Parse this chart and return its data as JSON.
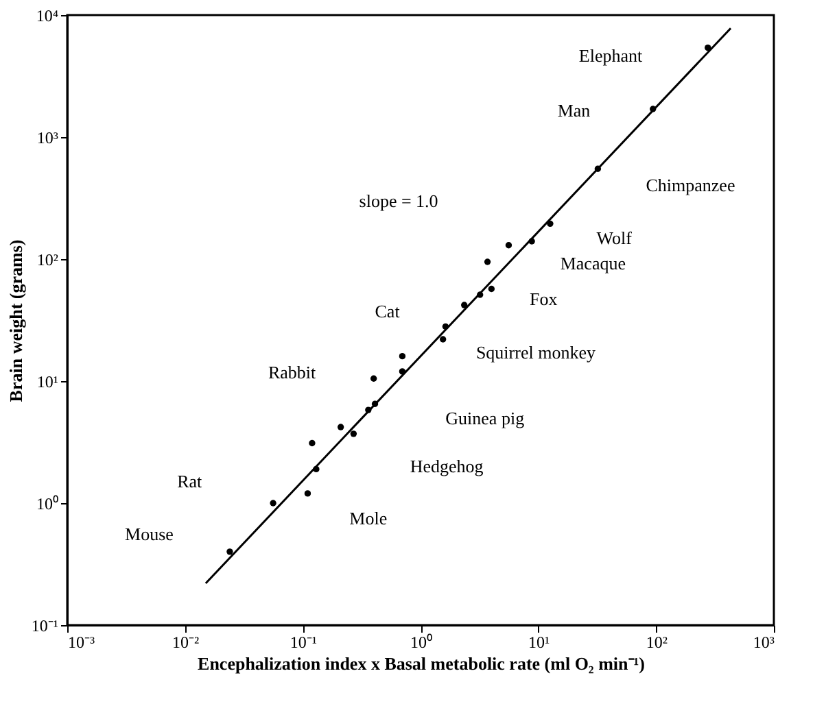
{
  "chart_data": {
    "type": "scatter",
    "xlabel": "Encephalization index x Basal metabolic rate (ml O₂ min⁻¹)",
    "ylabel": "Brain weight (grams)",
    "log": "xy",
    "grid": false,
    "xlim": [
      0.001,
      1000
    ],
    "ylim": [
      0.1,
      10000
    ],
    "xticks": [
      {
        "value": 0.001,
        "label": "10⁻³"
      },
      {
        "value": 0.01,
        "label": "10⁻²"
      },
      {
        "value": 0.1,
        "label": "10⁻¹"
      },
      {
        "value": 1,
        "label": "10⁰"
      },
      {
        "value": 10,
        "label": "10¹"
      },
      {
        "value": 100,
        "label": "10²"
      },
      {
        "value": 1000,
        "label": "10³"
      }
    ],
    "yticks": [
      {
        "value": 0.1,
        "label": "10⁻¹"
      },
      {
        "value": 1,
        "label": "10⁰"
      },
      {
        "value": 10,
        "label": "10¹"
      },
      {
        "value": 100,
        "label": "10²"
      },
      {
        "value": 1000,
        "label": "10³"
      },
      {
        "value": 10000,
        "label": "10⁴"
      }
    ],
    "series": [
      {
        "marker": "circle",
        "color": "#000000",
        "x": [
          0.024,
          0.056,
          0.11,
          0.13,
          0.12,
          0.21,
          0.27,
          0.36,
          0.41,
          0.4,
          0.7,
          0.7,
          1.55,
          1.63,
          2.35,
          3.2,
          4.0,
          3.7,
          5.6,
          8.8,
          12.6,
          32,
          94,
          275
        ],
        "values": [
          0.4,
          1.0,
          1.2,
          1.9,
          3.1,
          4.2,
          3.7,
          5.8,
          6.5,
          10.5,
          12,
          16,
          22,
          28,
          42,
          51,
          57,
          95,
          130,
          140,
          195,
          550,
          1700,
          5400
        ]
      },
      {
        "type": "line",
        "color": "#000000",
        "line_style": "solid",
        "x": [
          0.015,
          430
        ],
        "values": [
          0.22,
          7800
        ]
      }
    ],
    "annotations": [
      "Elephant",
      "Man",
      "Chimpanzee",
      "Wolf",
      "Macaque",
      "Fox",
      "Squirrel monkey",
      "Cat",
      "Rabbit",
      "Guinea pig",
      "Hedgehog",
      "Rat",
      "Mole",
      "Mouse",
      "slope = 1.0"
    ]
  }
}
